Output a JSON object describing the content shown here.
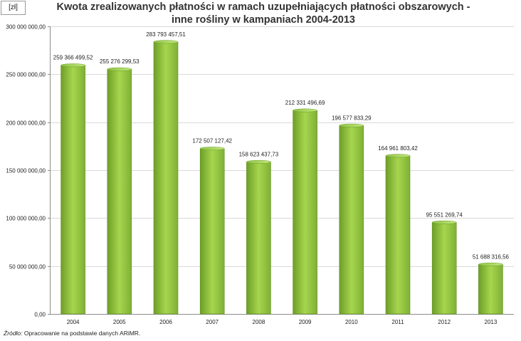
{
  "chart_data": {
    "type": "bar",
    "title_line1": "Kwota zrealizowanych płatności w ramach uzupełniających płatności obszarowych -",
    "title_line2": "inne rośliny w kampaniach 2004-2013",
    "ylabel": "[zł]",
    "xlabel": "",
    "ylim": [
      0,
      300000000
    ],
    "grid": true,
    "legend": "none",
    "bar_color": "#8cc63f",
    "categories": [
      "2004",
      "2005",
      "2006",
      "2007",
      "2008",
      "2009",
      "2010",
      "2011",
      "2012",
      "2013"
    ],
    "values": [
      259366499.52,
      255276299.53,
      283793457.51,
      172507127.42,
      158623437.73,
      212331496.69,
      196577833.29,
      164961803.42,
      95551269.74,
      51688316.56
    ],
    "value_labels": [
      "259 366 499,52",
      "255 276 299,53",
      "283 793 457,51",
      "172 507 127,42",
      "158 623 437,73",
      "212 331 496,69",
      "196 577 833,29",
      "164 961 803,42",
      "95 551 269,74",
      "51 688 316,56"
    ],
    "y_tick_values": [
      0,
      50000000,
      100000000,
      150000000,
      200000000,
      250000000,
      300000000
    ],
    "y_tick_labels": [
      "0,00",
      "50 000 000,00",
      "100 000 000,00",
      "150 000 000,00",
      "200 000 000,00",
      "250 000 000,00",
      "300 000 000,00"
    ]
  },
  "source": {
    "label": "Źródło:",
    "text": " Opracowanie na podstawie danych ARiMR."
  }
}
